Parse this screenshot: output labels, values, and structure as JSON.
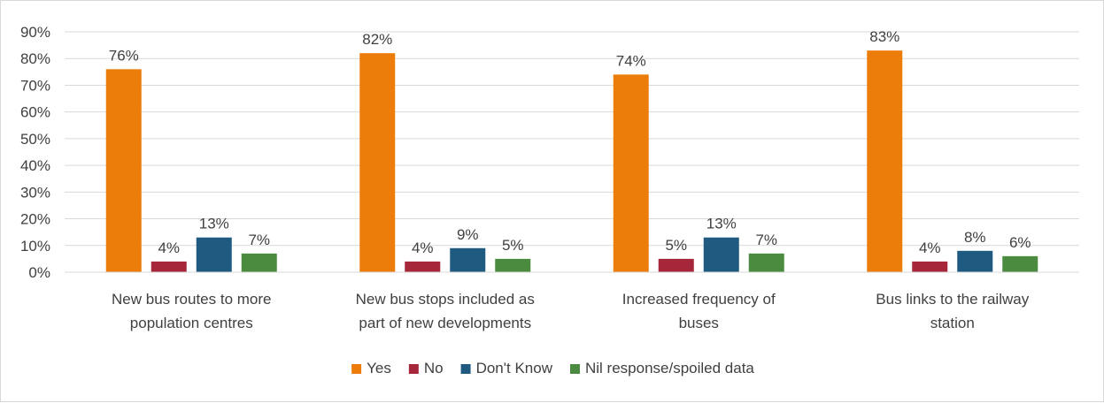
{
  "chart_data": {
    "type": "bar",
    "title": "",
    "xlabel": "",
    "ylabel": "",
    "ylim": [
      0,
      90
    ],
    "y_ticks": [
      "0%",
      "10%",
      "20%",
      "30%",
      "40%",
      "50%",
      "60%",
      "70%",
      "80%",
      "90%"
    ],
    "y_tick_values": [
      0,
      10,
      20,
      30,
      40,
      50,
      60,
      70,
      80,
      90
    ],
    "grid": true,
    "legend_position": "bottom",
    "categories": [
      [
        "New bus routes to more",
        "population centres"
      ],
      [
        "New bus stops included as",
        "part of new developments"
      ],
      [
        "Increased frequency of",
        "buses"
      ],
      [
        "Bus links to the railway",
        "station"
      ]
    ],
    "series": [
      {
        "name": "Yes",
        "color": "#ED7D0A",
        "values": [
          76,
          82,
          74,
          83
        ],
        "labels": [
          "76%",
          "82%",
          "74%",
          "83%"
        ]
      },
      {
        "name": "No",
        "color": "#A6263A",
        "values": [
          4,
          4,
          5,
          4
        ],
        "labels": [
          "4%",
          "4%",
          "5%",
          "4%"
        ]
      },
      {
        "name": "Don't Know",
        "color": "#1F5A80",
        "values": [
          13,
          9,
          13,
          8
        ],
        "labels": [
          "13%",
          "9%",
          "13%",
          "8%"
        ]
      },
      {
        "name": "Nil response/spoiled data",
        "color": "#4A8B3F",
        "values": [
          7,
          5,
          7,
          6
        ],
        "labels": [
          "7%",
          "5%",
          "7%",
          "6%"
        ]
      }
    ]
  }
}
